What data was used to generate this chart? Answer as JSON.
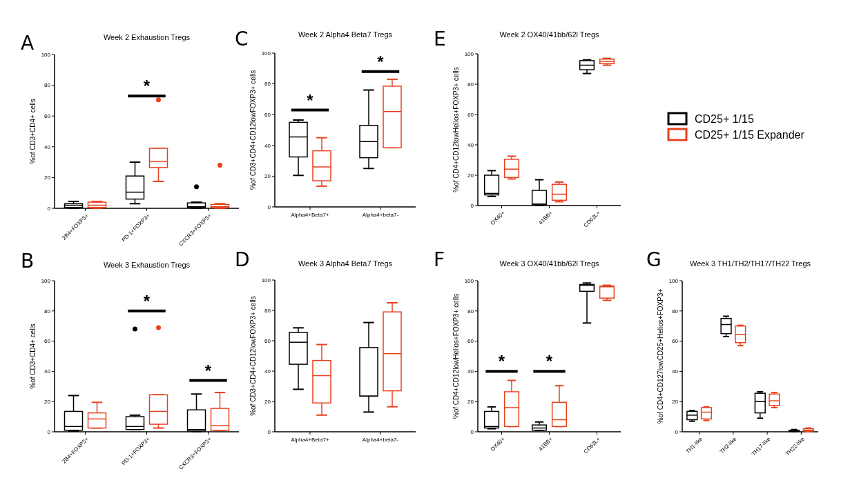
{
  "chart_data": [
    {
      "type": "box",
      "title": "Week 2 Exhaustion Tregs",
      "ylabel": "%of CD3+CD4+ cells",
      "categories": [
        "2B4+FOXP3+",
        "PD-1+FOXP3+",
        "CXCR3+FOXP3+"
      ],
      "ylim": [
        0,
        100
      ],
      "yticks": [
        0,
        20,
        40,
        60,
        80,
        100
      ],
      "annotations": [
        "A",
        "*"
      ],
      "series": [
        {
          "color": "#000000",
          "boxes": [
            {
              "low": 0,
              "q1": 0.5,
              "median": 2,
              "q3": 3,
              "high": 4.5
            },
            {
              "low": 3,
              "q1": 6,
              "median": 10.5,
              "q3": 21,
              "high": 30
            },
            {
              "low": 0,
              "q1": 0.5,
              "median": 1,
              "q3": 3.5,
              "high": 4,
              "outliers": [
                14
              ]
            }
          ]
        },
        {
          "color": "#e8401c",
          "boxes": [
            {
              "low": 0,
              "q1": 0.5,
              "median": 2,
              "q3": 4,
              "high": 4.5
            },
            {
              "low": 17.5,
              "q1": 26.5,
              "median": 30.5,
              "q3": 39,
              "high": 39,
              "outliers": [
                70.5
              ]
            },
            {
              "low": 0,
              "q1": 0.5,
              "median": 1,
              "q3": 2.5,
              "high": 3,
              "outliers": [
                28
              ]
            }
          ]
        }
      ]
    },
    {
      "type": "box",
      "title": "Week 3 Exhaustion Tregs",
      "ylabel": "%of CD3+CD4+ cells",
      "categories": [
        "2B4+FOXP3+",
        "PD-1+FOXP3+",
        "CXCR3+FOXP3+"
      ],
      "ylim": [
        0,
        100
      ],
      "yticks": [
        0,
        20,
        40,
        60,
        80,
        100
      ],
      "annotations": [
        "B",
        "*",
        "*"
      ],
      "series": [
        {
          "color": "#000000",
          "boxes": [
            {
              "low": 0.5,
              "q1": 1,
              "median": 3.5,
              "q3": 13.5,
              "high": 24
            },
            {
              "low": 1.5,
              "q1": 1.5,
              "median": 3.5,
              "q3": 10,
              "high": 11,
              "outliers": [
                68
              ]
            },
            {
              "low": 0,
              "q1": 0.5,
              "median": 1.5,
              "q3": 14.5,
              "high": 25
            }
          ]
        },
        {
          "color": "#e8401c",
          "boxes": [
            {
              "low": 2.5,
              "q1": 2.5,
              "median": 8.5,
              "q3": 12.5,
              "high": 19.5
            },
            {
              "low": 2.5,
              "q1": 5,
              "median": 13.5,
              "q3": 24.5,
              "high": 24.5,
              "outliers": [
                69
              ]
            },
            {
              "low": 1,
              "q1": 1,
              "median": 4,
              "q3": 15.5,
              "high": 26
            }
          ]
        }
      ]
    },
    {
      "type": "box",
      "title": "Week 2 Alpha4 Beta7 Tregs",
      "ylabel": "%of CD3+CD4+CD12lowFOXP3+ cells",
      "categories": [
        "Alpha4+Beta7+",
        "Alpha4+beta7-"
      ],
      "ylim": [
        0,
        100
      ],
      "yticks": [
        0,
        20,
        40,
        60,
        80,
        100
      ],
      "annotations": [
        "C",
        "*",
        "*"
      ],
      "series": [
        {
          "color": "#000000",
          "boxes": [
            {
              "low": 20.5,
              "q1": 32.5,
              "median": 45.5,
              "q3": 55,
              "high": 56.5
            },
            {
              "low": 25,
              "q1": 32,
              "median": 42.5,
              "q3": 53,
              "high": 76
            }
          ]
        },
        {
          "color": "#e8401c",
          "boxes": [
            {
              "low": 13.5,
              "q1": 17,
              "median": 26,
              "q3": 36.5,
              "high": 45
            },
            {
              "low": 38.5,
              "q1": 38.5,
              "median": 62,
              "q3": 78.5,
              "high": 83
            }
          ]
        }
      ]
    },
    {
      "type": "box",
      "title": "Week 3 Alpha4 Beta7 Tregs",
      "ylabel": "%of CD3+CD4+CD12lowFOXP3+ cells",
      "categories": [
        "Alpha4+Beta7+",
        "Alpha4+beta7-"
      ],
      "ylim": [
        0,
        100
      ],
      "yticks": [
        0,
        20,
        40,
        60,
        80,
        100
      ],
      "annotations": [
        "D"
      ],
      "series": [
        {
          "color": "#000000",
          "boxes": [
            {
              "low": 28,
              "q1": 44.5,
              "median": 59,
              "q3": 65.5,
              "high": 68.5
            },
            {
              "low": 13,
              "q1": 23.5,
              "median": 23.5,
              "q3": 55.5,
              "high": 72
            }
          ]
        },
        {
          "color": "#e8401c",
          "boxes": [
            {
              "low": 11,
              "q1": 19,
              "median": 37,
              "q3": 47,
              "high": 57.5
            },
            {
              "low": 16.5,
              "q1": 27,
              "median": 51.5,
              "q3": 79,
              "high": 85
            }
          ]
        }
      ]
    },
    {
      "type": "box",
      "title": "Week 2 OX40/41bb/62l Tregs",
      "ylabel": "%of CD4+CD12lowHelios+FOXP3+ cells",
      "categories": [
        "OX40+",
        "41BB+",
        "CD62L+"
      ],
      "ylim": [
        0,
        100
      ],
      "yticks": [
        0,
        20,
        40,
        60,
        80,
        100
      ],
      "annotations": [
        "E"
      ],
      "legend": "right",
      "series": [
        {
          "name": "CD25+ 1/15",
          "color": "#000000",
          "boxes": [
            {
              "low": 6,
              "q1": 7,
              "median": 8,
              "q3": 20,
              "high": 23
            },
            {
              "low": 0,
              "q1": 0.5,
              "median": 1,
              "q3": 10,
              "high": 17
            },
            {
              "low": 87,
              "q1": 89.5,
              "median": 92.5,
              "q3": 95.5,
              "high": 96
            }
          ]
        },
        {
          "name": "CD25+ 1/15 Expander",
          "color": "#e8401c",
          "boxes": [
            {
              "low": 17.5,
              "q1": 18.5,
              "median": 24,
              "q3": 30.5,
              "high": 32.5
            },
            {
              "low": 2.5,
              "q1": 3.5,
              "median": 7.5,
              "q3": 14,
              "high": 15.5
            },
            {
              "low": 92.5,
              "q1": 93.5,
              "median": 95,
              "q3": 96.5,
              "high": 97
            }
          ]
        }
      ]
    },
    {
      "type": "box",
      "title": "Week 3 OX40/41bb/62l Tregs",
      "ylabel": "%of CD4+CD12lowHelios+FOXP3+ cells",
      "categories": [
        "OX40+",
        "41BB+",
        "CD62L+"
      ],
      "ylim": [
        0,
        100
      ],
      "yticks": [
        0,
        20,
        40,
        60,
        80,
        100
      ],
      "annotations": [
        "F",
        "*",
        "*"
      ],
      "series": [
        {
          "color": "#000000",
          "boxes": [
            {
              "low": 2,
              "q1": 2.5,
              "median": 3.5,
              "q3": 13.5,
              "high": 16.5
            },
            {
              "low": 1,
              "q1": 1,
              "median": 2.5,
              "q3": 4.5,
              "high": 6.5
            },
            {
              "low": 72,
              "q1": 93,
              "median": 97,
              "q3": 97.5,
              "high": 98.5
            }
          ]
        },
        {
          "color": "#e8401c",
          "boxes": [
            {
              "low": 3.5,
              "q1": 3.5,
              "median": 16,
              "q3": 26.5,
              "high": 34
            },
            {
              "low": 3.5,
              "q1": 3.5,
              "median": 8,
              "q3": 19.5,
              "high": 30.5
            },
            {
              "low": 87,
              "q1": 88.5,
              "median": 96,
              "q3": 96.5,
              "high": 97
            }
          ]
        }
      ]
    },
    {
      "type": "box",
      "title": "Week 3 TH1/TH2/TH17/TH22 Tregs",
      "ylabel": "%of CD4+CD127lowCD25+Helios+FOXP3+",
      "categories": [
        "TH1-like",
        "TH2-like",
        "TH17-like",
        "TH22-like"
      ],
      "ylim": [
        0,
        100
      ],
      "yticks": [
        0,
        20,
        40,
        60,
        80,
        100
      ],
      "annotations": [
        "G"
      ],
      "series": [
        {
          "color": "#000000",
          "boxes": [
            {
              "low": 7,
              "q1": 8,
              "median": 11,
              "q3": 13.5,
              "high": 14
            },
            {
              "low": 63,
              "q1": 65,
              "median": 71,
              "q3": 75,
              "high": 76.5
            },
            {
              "low": 9,
              "q1": 12.5,
              "median": 20,
              "q3": 25.5,
              "high": 26.5
            },
            {
              "low": 0,
              "q1": 0.3,
              "median": 0.5,
              "q3": 1,
              "high": 1.5
            }
          ]
        },
        {
          "color": "#e8401c",
          "boxes": [
            {
              "low": 7.5,
              "q1": 8.5,
              "median": 13,
              "q3": 16,
              "high": 16.5
            },
            {
              "low": 57,
              "q1": 59,
              "median": 64.5,
              "q3": 70,
              "high": 70.5
            },
            {
              "low": 16,
              "q1": 17.5,
              "median": 20.5,
              "q3": 25,
              "high": 26
            },
            {
              "low": 0,
              "q1": 0.5,
              "median": 1,
              "q3": 2,
              "high": 2.5
            }
          ]
        }
      ]
    }
  ]
}
